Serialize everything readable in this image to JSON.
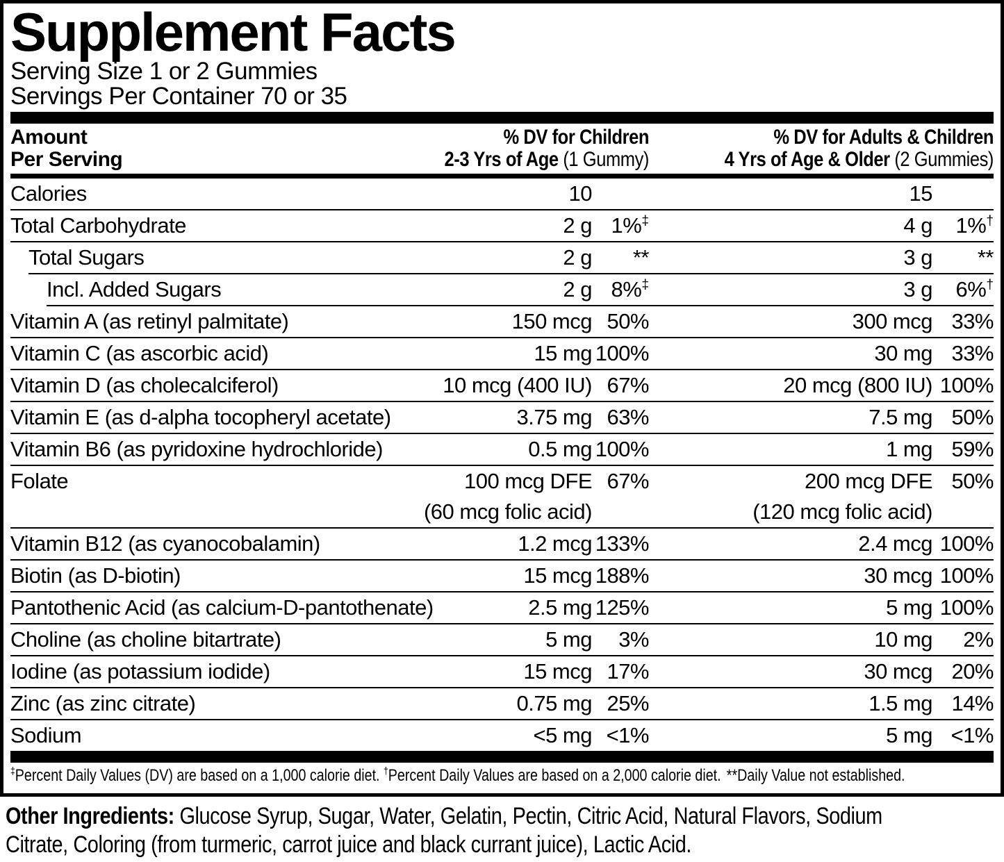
{
  "title": "Supplement Facts",
  "serving_size": "Serving Size 1 or 2 Gummies",
  "servings_per_container": "Servings Per Container 70 or 35",
  "header": {
    "amount_line1": "Amount",
    "amount_line2": "Per Serving",
    "children_line1": "% DV for Children",
    "children_line2_bold": "2-3 Yrs of Age",
    "children_line2_note": "(1 Gummy)",
    "adults_line1": "% DV for Adults & Children",
    "adults_line2_bold": "4 Yrs of Age & Older",
    "adults_line2_note": "(2 Gummies)"
  },
  "rows": [
    {
      "name": "Calories",
      "indent": 0,
      "c_amt": "10",
      "a_amt": "15"
    },
    {
      "name": "Total Carbohydrate",
      "indent": 0,
      "c_amt": "2 g",
      "c_pct": "1%",
      "c_sup": "‡",
      "a_amt": "4 g",
      "a_pct": "1%",
      "a_sup": "†"
    },
    {
      "name": "Total Sugars",
      "indent": 1,
      "c_amt": "2 g",
      "c_pct": "**",
      "a_amt": "3 g",
      "a_pct": "**"
    },
    {
      "name": "Incl. Added Sugars",
      "indent": 2,
      "c_amt": "2 g",
      "c_pct": "8%",
      "c_sup": "‡",
      "a_amt": "3 g",
      "a_pct": "6%",
      "a_sup": "†"
    },
    {
      "name": "Vitamin A (as retinyl palmitate)",
      "indent": 0,
      "c_amt": "150 mcg",
      "c_pct": "50%",
      "a_amt": "300 mcg",
      "a_pct": "33%"
    },
    {
      "name": "Vitamin C (as ascorbic acid)",
      "indent": 0,
      "c_amt": "15 mg",
      "c_pct": "100%",
      "a_amt": "30 mg",
      "a_pct": "33%"
    },
    {
      "name": "Vitamin D (as cholecalciferol)",
      "indent": 0,
      "c_amt": "10 mcg (400 IU)",
      "c_pct": "67%",
      "a_amt": "20 mcg (800 IU)",
      "a_pct": "100%"
    },
    {
      "name": "Vitamin E (as d-alpha tocopheryl acetate)",
      "indent": 0,
      "c_amt": "3.75 mg",
      "c_pct": "63%",
      "a_amt": "7.5 mg",
      "a_pct": "50%"
    },
    {
      "name": "Vitamin B6 (as pyridoxine hydrochloride)",
      "indent": 0,
      "c_amt": "0.5 mg",
      "c_pct": "100%",
      "a_amt": "1 mg",
      "a_pct": "59%"
    },
    {
      "name": "Folate",
      "indent": 0,
      "c_amt": "100 mcg DFE",
      "c_amt2": "(60 mcg folic acid)",
      "c_pct": "67%",
      "a_amt": "200 mcg DFE",
      "a_amt2": "(120 mcg folic acid)",
      "a_pct": "50%"
    },
    {
      "name": "Vitamin B12 (as cyanocobalamin)",
      "indent": 0,
      "c_amt": "1.2 mcg",
      "c_pct": "133%",
      "a_amt": "2.4 mcg",
      "a_pct": "100%"
    },
    {
      "name": "Biotin (as D-biotin)",
      "indent": 0,
      "c_amt": "15 mcg",
      "c_pct": "188%",
      "a_amt": "30 mcg",
      "a_pct": "100%"
    },
    {
      "name": "Pantothenic Acid (as calcium-D-pantothenate)",
      "indent": 0,
      "c_amt": "2.5 mg",
      "c_pct": "125%",
      "a_amt": "5 mg",
      "a_pct": "100%"
    },
    {
      "name": "Choline (as choline bitartrate)",
      "indent": 0,
      "c_amt": "5 mg",
      "c_pct": "3%",
      "a_amt": "10 mg",
      "a_pct": "2%"
    },
    {
      "name": "Iodine (as potassium iodide)",
      "indent": 0,
      "c_amt": "15 mcg",
      "c_pct": "17%",
      "a_amt": "30 mcg",
      "a_pct": "20%"
    },
    {
      "name": "Zinc (as zinc citrate)",
      "indent": 0,
      "c_amt": "0.75 mg",
      "c_pct": "25%",
      "a_amt": "1.5 mg",
      "a_pct": "14%"
    },
    {
      "name": "Sodium",
      "indent": 0,
      "c_amt": "<5 mg",
      "c_pct": "<1%",
      "a_amt": "5 mg",
      "a_pct": "<1%"
    }
  ],
  "footnote": {
    "part1_sup": "‡",
    "part1": "Percent Daily Values (DV) are based on a 1,000 calorie diet. ",
    "part2_sup": "†",
    "part2": "Percent Daily Values are based on a 2,000 calorie diet.",
    "part3": "**Daily Value not established."
  },
  "other_ingredients": {
    "label": "Other Ingredients:",
    "line1_text": "Glucose Syrup, Sugar, Water, Gelatin, Pectin, Citric Acid, Natural Flavors, Sodium",
    "line2_text": "Citrate, Coloring (from turmeric, carrot juice and black currant juice), Lactic Acid."
  },
  "colors": {
    "text": "#000000",
    "background": "#ffffff"
  }
}
